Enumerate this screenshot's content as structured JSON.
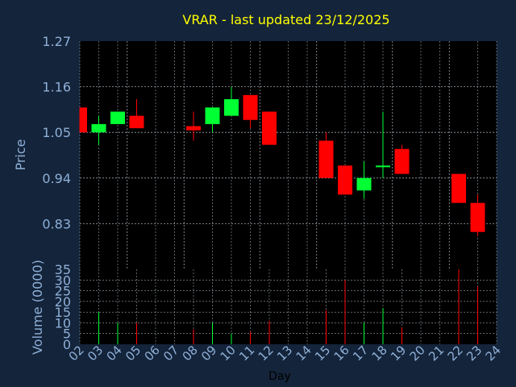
{
  "colors": {
    "background": "#14243a",
    "plot_bg": "#000000",
    "title": "#ffff00",
    "axis_text": "#8fb0d8",
    "axis_line": "#8fb0d8",
    "grid": "#9aa3ad",
    "up": "#00ff33",
    "down": "#ff0000",
    "wick": "#ff0000"
  },
  "chart_data": [
    {
      "type": "candlestick",
      "title": "VRAR - last updated 23/12/2025",
      "ylabel": "Price",
      "ylim": [
        0.72,
        1.27
      ],
      "yticks": [
        "1.27",
        "1.16",
        "1.05",
        "0.94",
        "0.83"
      ],
      "x_categories": [
        "02",
        "03",
        "04",
        "05",
        "06",
        "07",
        "08",
        "09",
        "10",
        "11",
        "12",
        "13",
        "14",
        "15",
        "16",
        "17",
        "18",
        "19",
        "20",
        "21",
        "22",
        "23",
        "24"
      ],
      "grid": true,
      "candles": [
        {
          "day": "02",
          "open": 1.11,
          "close": 1.05,
          "high": 1.11,
          "low": 1.05
        },
        {
          "day": "03",
          "open": 1.05,
          "close": 1.07,
          "high": 1.09,
          "low": 1.02
        },
        {
          "day": "04",
          "open": 1.07,
          "close": 1.1,
          "high": 1.1,
          "low": 1.07
        },
        {
          "day": "05",
          "open": 1.09,
          "close": 1.06,
          "high": 1.13,
          "low": 1.06
        },
        {
          "day": "08",
          "open": 1.065,
          "close": 1.055,
          "high": 1.1,
          "low": 1.03
        },
        {
          "day": "09",
          "open": 1.07,
          "close": 1.11,
          "high": 1.11,
          "low": 1.05
        },
        {
          "day": "10",
          "open": 1.09,
          "close": 1.13,
          "high": 1.16,
          "low": 1.09
        },
        {
          "day": "11",
          "open": 1.14,
          "close": 1.08,
          "high": 1.14,
          "low": 1.06
        },
        {
          "day": "12",
          "open": 1.1,
          "close": 1.02,
          "high": 1.1,
          "low": 1.02
        },
        {
          "day": "15",
          "open": 1.03,
          "close": 0.94,
          "high": 1.05,
          "low": 0.94
        },
        {
          "day": "16",
          "open": 0.97,
          "close": 0.9,
          "high": 0.97,
          "low": 0.9
        },
        {
          "day": "17",
          "open": 0.91,
          "close": 0.94,
          "high": 0.98,
          "low": 0.89
        },
        {
          "day": "18",
          "open": 0.97,
          "close": 0.97,
          "high": 1.1,
          "low": 0.94
        },
        {
          "day": "19",
          "open": 1.01,
          "close": 0.95,
          "high": 1.02,
          "low": 0.95
        },
        {
          "day": "22",
          "open": 0.95,
          "close": 0.88,
          "high": 0.95,
          "low": 0.88
        },
        {
          "day": "23",
          "open": 0.88,
          "close": 0.81,
          "high": 0.9,
          "low": 0.8
        }
      ]
    },
    {
      "type": "bar",
      "ylabel": "Volume (0000)",
      "xlabel": "Day",
      "ylim": [
        0,
        35
      ],
      "yticks": [
        "35",
        "30",
        "25",
        "20",
        "15",
        "10",
        "5",
        "0"
      ],
      "x_categories": [
        "02",
        "03",
        "04",
        "05",
        "06",
        "07",
        "08",
        "09",
        "10",
        "11",
        "12",
        "13",
        "14",
        "15",
        "16",
        "17",
        "18",
        "19",
        "20",
        "21",
        "22",
        "23",
        "24"
      ],
      "grid": true,
      "bars": [
        {
          "day": "03",
          "value": 15,
          "direction": "up"
        },
        {
          "day": "04",
          "value": 10,
          "direction": "up"
        },
        {
          "day": "05",
          "value": 10,
          "direction": "down"
        },
        {
          "day": "08",
          "value": 7,
          "direction": "down"
        },
        {
          "day": "09",
          "value": 10,
          "direction": "up"
        },
        {
          "day": "10",
          "value": 5,
          "direction": "up"
        },
        {
          "day": "11",
          "value": 6,
          "direction": "down"
        },
        {
          "day": "12",
          "value": 11,
          "direction": "down"
        },
        {
          "day": "15",
          "value": 16,
          "direction": "down"
        },
        {
          "day": "16",
          "value": 30,
          "direction": "down"
        },
        {
          "day": "17",
          "value": 10,
          "direction": "up"
        },
        {
          "day": "18",
          "value": 17,
          "direction": "up"
        },
        {
          "day": "19",
          "value": 8,
          "direction": "down"
        },
        {
          "day": "22",
          "value": 35,
          "direction": "down"
        },
        {
          "day": "23",
          "value": 27,
          "direction": "down"
        }
      ]
    }
  ]
}
